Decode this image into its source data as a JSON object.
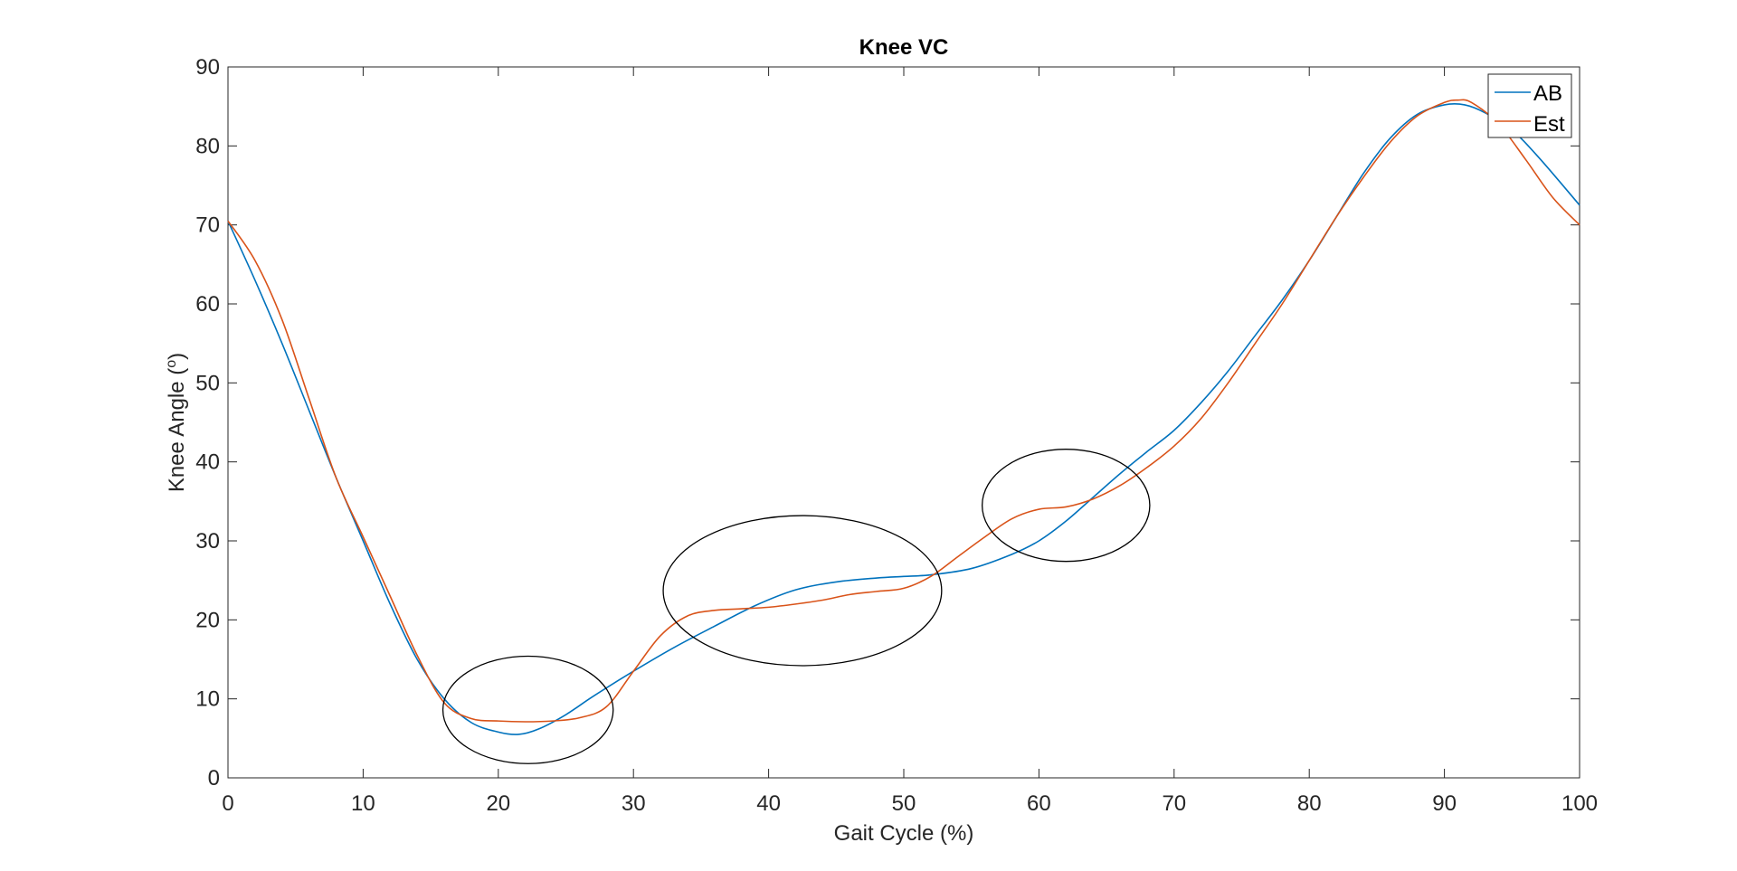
{
  "chart_data": {
    "type": "line",
    "title": "Knee VC",
    "xlabel": "Gait Cycle (%)",
    "ylabel_prefix": "Knee Angle (",
    "ylabel_sup": "o",
    "ylabel_suffix": ")",
    "xlim": [
      0,
      100
    ],
    "ylim": [
      0,
      90
    ],
    "xticks": [
      0,
      10,
      20,
      30,
      40,
      50,
      60,
      70,
      80,
      90,
      100
    ],
    "yticks": [
      0,
      10,
      20,
      30,
      40,
      50,
      60,
      70,
      80,
      90
    ],
    "grid": false,
    "legend_position": "top-right",
    "series": [
      {
        "name": "AB",
        "color": "#0072BD",
        "x": [
          0,
          2,
          4,
          6,
          8,
          10,
          12,
          14,
          16,
          18,
          20,
          21.5,
          23,
          25,
          27,
          30,
          33,
          36,
          39,
          42,
          45,
          48,
          50,
          52,
          55,
          58,
          60,
          62,
          64,
          66,
          68,
          70,
          72,
          74,
          76,
          78,
          80,
          82,
          84,
          86,
          88,
          90,
          91.5,
          93,
          95,
          97,
          100
        ],
        "y": [
          70.5,
          63,
          55,
          46.5,
          38,
          30,
          22,
          15,
          10,
          7,
          5.8,
          5.5,
          6.2,
          8,
          10.3,
          13.5,
          16.5,
          19.2,
          21.8,
          23.8,
          24.8,
          25.3,
          25.5,
          25.7,
          26.5,
          28.3,
          30,
          32.5,
          35.5,
          38.5,
          41.3,
          44,
          47.5,
          51.5,
          56,
          60.5,
          65.5,
          71,
          76.5,
          81,
          84,
          85.2,
          85.2,
          84.2,
          82,
          78.5,
          72.5
        ]
      },
      {
        "name": "Est",
        "color": "#D95319",
        "x": [
          0,
          2,
          4,
          6,
          8,
          10,
          12,
          14,
          16,
          18,
          20,
          22,
          24,
          26,
          28,
          30,
          32,
          34,
          36,
          38,
          40,
          42,
          44,
          46,
          48,
          50,
          52,
          54,
          56,
          58,
          60,
          62,
          64,
          66,
          68,
          70,
          72,
          74,
          76,
          78,
          80,
          82,
          84,
          86,
          88,
          90,
          91,
          92,
          94,
          96,
          98,
          100
        ],
        "y": [
          70.5,
          65.5,
          58,
          48,
          38,
          30.5,
          23,
          15.5,
          9.5,
          7.5,
          7.2,
          7.1,
          7.2,
          7.6,
          9,
          13.5,
          18,
          20.5,
          21.2,
          21.4,
          21.6,
          22,
          22.5,
          23.2,
          23.6,
          24,
          25.5,
          28,
          30.5,
          32.8,
          34,
          34.3,
          35.3,
          37,
          39.3,
          42,
          45.5,
          50,
          55,
          60,
          65.5,
          71,
          76,
          80.5,
          83.8,
          85.5,
          85.8,
          85.5,
          82.8,
          78.3,
          73.5,
          70
        ]
      }
    ],
    "annotations": [
      {
        "shape": "ellipse",
        "cx": 22.2,
        "cy": 8.6,
        "rx": 6.3,
        "ry": 6.8
      },
      {
        "shape": "ellipse",
        "cx": 42.5,
        "cy": 23.7,
        "rx": 10.3,
        "ry": 9.5
      },
      {
        "shape": "ellipse",
        "cx": 62.0,
        "cy": 34.5,
        "rx": 6.2,
        "ry": 7.1
      }
    ]
  }
}
